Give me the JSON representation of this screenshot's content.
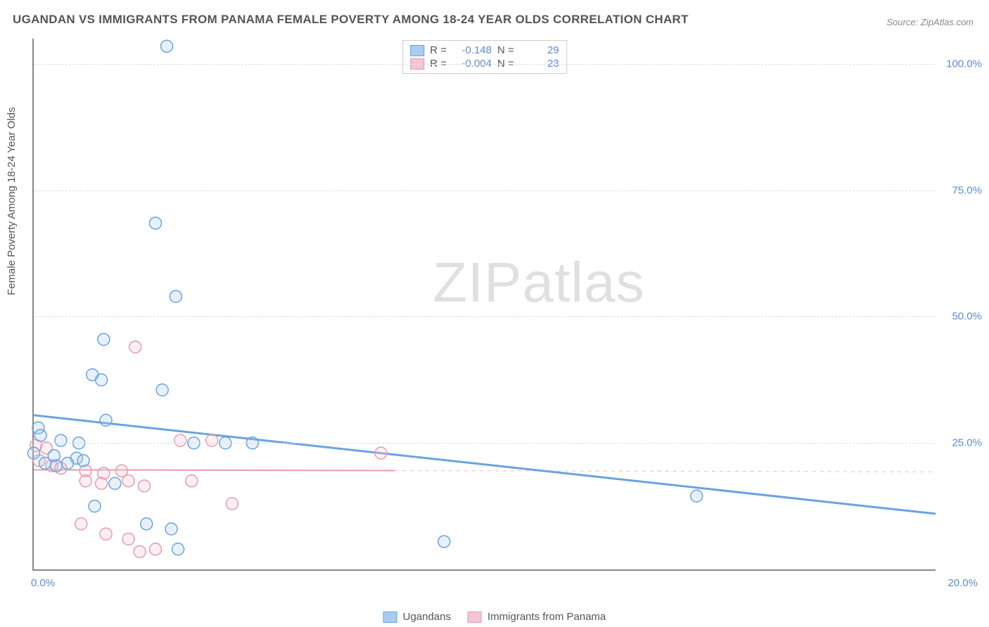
{
  "title": "UGANDAN VS IMMIGRANTS FROM PANAMA FEMALE POVERTY AMONG 18-24 YEAR OLDS CORRELATION CHART",
  "source": "Source: ZipAtlas.com",
  "watermark": {
    "part1": "ZIP",
    "part2": "atlas"
  },
  "chart": {
    "type": "scatter",
    "background_color": "#ffffff",
    "grid_color": "#dddddd",
    "axis_color": "#888888",
    "title_fontsize": 17,
    "label_fontsize": 15,
    "tick_color": "#5b8bd4",
    "y_axis_label": "Female Poverty Among 18-24 Year Olds",
    "xlim": [
      0,
      20
    ],
    "ylim": [
      0,
      105
    ],
    "x_ticks": [
      {
        "value": 0,
        "label": "0.0%"
      },
      {
        "value": 20,
        "label": "20.0%"
      }
    ],
    "y_ticks": [
      {
        "value": 25,
        "label": "25.0%"
      },
      {
        "value": 50,
        "label": "50.0%"
      },
      {
        "value": 75,
        "label": "75.0%"
      },
      {
        "value": 100,
        "label": "100.0%"
      }
    ],
    "marker_radius": 8.5,
    "marker_stroke_width": 1.5,
    "marker_fill_opacity": 0.28,
    "series": [
      {
        "name": "Ugandans",
        "color_stroke": "#6aa3e0",
        "color_fill": "#a9cdef",
        "r_stat": "-0.148",
        "n_stat": "29",
        "trend": {
          "y_at_xmin": 30.5,
          "y_at_xmax": 11.0,
          "solid_until_x": 20,
          "line_width": 3
        },
        "points": [
          {
            "x": 2.95,
            "y": 103.5
          },
          {
            "x": 2.7,
            "y": 68.5
          },
          {
            "x": 3.15,
            "y": 54.0
          },
          {
            "x": 1.55,
            "y": 45.5
          },
          {
            "x": 1.3,
            "y": 38.5
          },
          {
            "x": 1.5,
            "y": 37.5
          },
          {
            "x": 2.85,
            "y": 35.5
          },
          {
            "x": 1.6,
            "y": 29.5
          },
          {
            "x": 0.1,
            "y": 28.0
          },
          {
            "x": 0.15,
            "y": 26.5
          },
          {
            "x": 0.6,
            "y": 25.5
          },
          {
            "x": 1.0,
            "y": 25.0
          },
          {
            "x": 3.55,
            "y": 25.0
          },
          {
            "x": 4.25,
            "y": 25.0
          },
          {
            "x": 4.85,
            "y": 25.0
          },
          {
            "x": 0.0,
            "y": 23.0
          },
          {
            "x": 0.45,
            "y": 22.5
          },
          {
            "x": 0.95,
            "y": 22.0
          },
          {
            "x": 0.25,
            "y": 21.0
          },
          {
            "x": 0.75,
            "y": 21.0
          },
          {
            "x": 0.5,
            "y": 20.5
          },
          {
            "x": 1.1,
            "y": 21.5
          },
          {
            "x": 1.8,
            "y": 17.0
          },
          {
            "x": 1.35,
            "y": 12.5
          },
          {
            "x": 14.7,
            "y": 14.5
          },
          {
            "x": 2.5,
            "y": 9.0
          },
          {
            "x": 3.05,
            "y": 8.0
          },
          {
            "x": 3.2,
            "y": 4.0
          },
          {
            "x": 9.1,
            "y": 5.5
          }
        ]
      },
      {
        "name": "Immigrants from Panama",
        "color_stroke": "#e79bb0",
        "color_fill": "#f3c6d2",
        "r_stat": "-0.004",
        "n_stat": "23",
        "trend": {
          "y_at_xmin": 19.7,
          "y_at_xmax": 19.3,
          "solid_until_x": 8.0,
          "line_width": 2
        },
        "points": [
          {
            "x": 2.25,
            "y": 44.0
          },
          {
            "x": 3.25,
            "y": 25.5
          },
          {
            "x": 3.95,
            "y": 25.5
          },
          {
            "x": 0.05,
            "y": 24.5
          },
          {
            "x": 0.28,
            "y": 24.0
          },
          {
            "x": 7.7,
            "y": 23.0
          },
          {
            "x": 0.12,
            "y": 21.5
          },
          {
            "x": 0.4,
            "y": 20.5
          },
          {
            "x": 0.6,
            "y": 20.0
          },
          {
            "x": 1.15,
            "y": 19.5
          },
          {
            "x": 1.55,
            "y": 19.0
          },
          {
            "x": 1.95,
            "y": 19.5
          },
          {
            "x": 1.15,
            "y": 17.5
          },
          {
            "x": 1.5,
            "y": 17.0
          },
          {
            "x": 2.1,
            "y": 17.5
          },
          {
            "x": 2.45,
            "y": 16.5
          },
          {
            "x": 3.5,
            "y": 17.5
          },
          {
            "x": 4.4,
            "y": 13.0
          },
          {
            "x": 1.05,
            "y": 9.0
          },
          {
            "x": 1.6,
            "y": 7.0
          },
          {
            "x": 2.1,
            "y": 6.0
          },
          {
            "x": 2.35,
            "y": 3.5
          },
          {
            "x": 2.7,
            "y": 4.0
          }
        ]
      }
    ],
    "legend_top": {
      "r_label": "R =",
      "n_label": "N ="
    },
    "legend_bottom": [
      {
        "series": 0
      },
      {
        "series": 1
      }
    ]
  }
}
